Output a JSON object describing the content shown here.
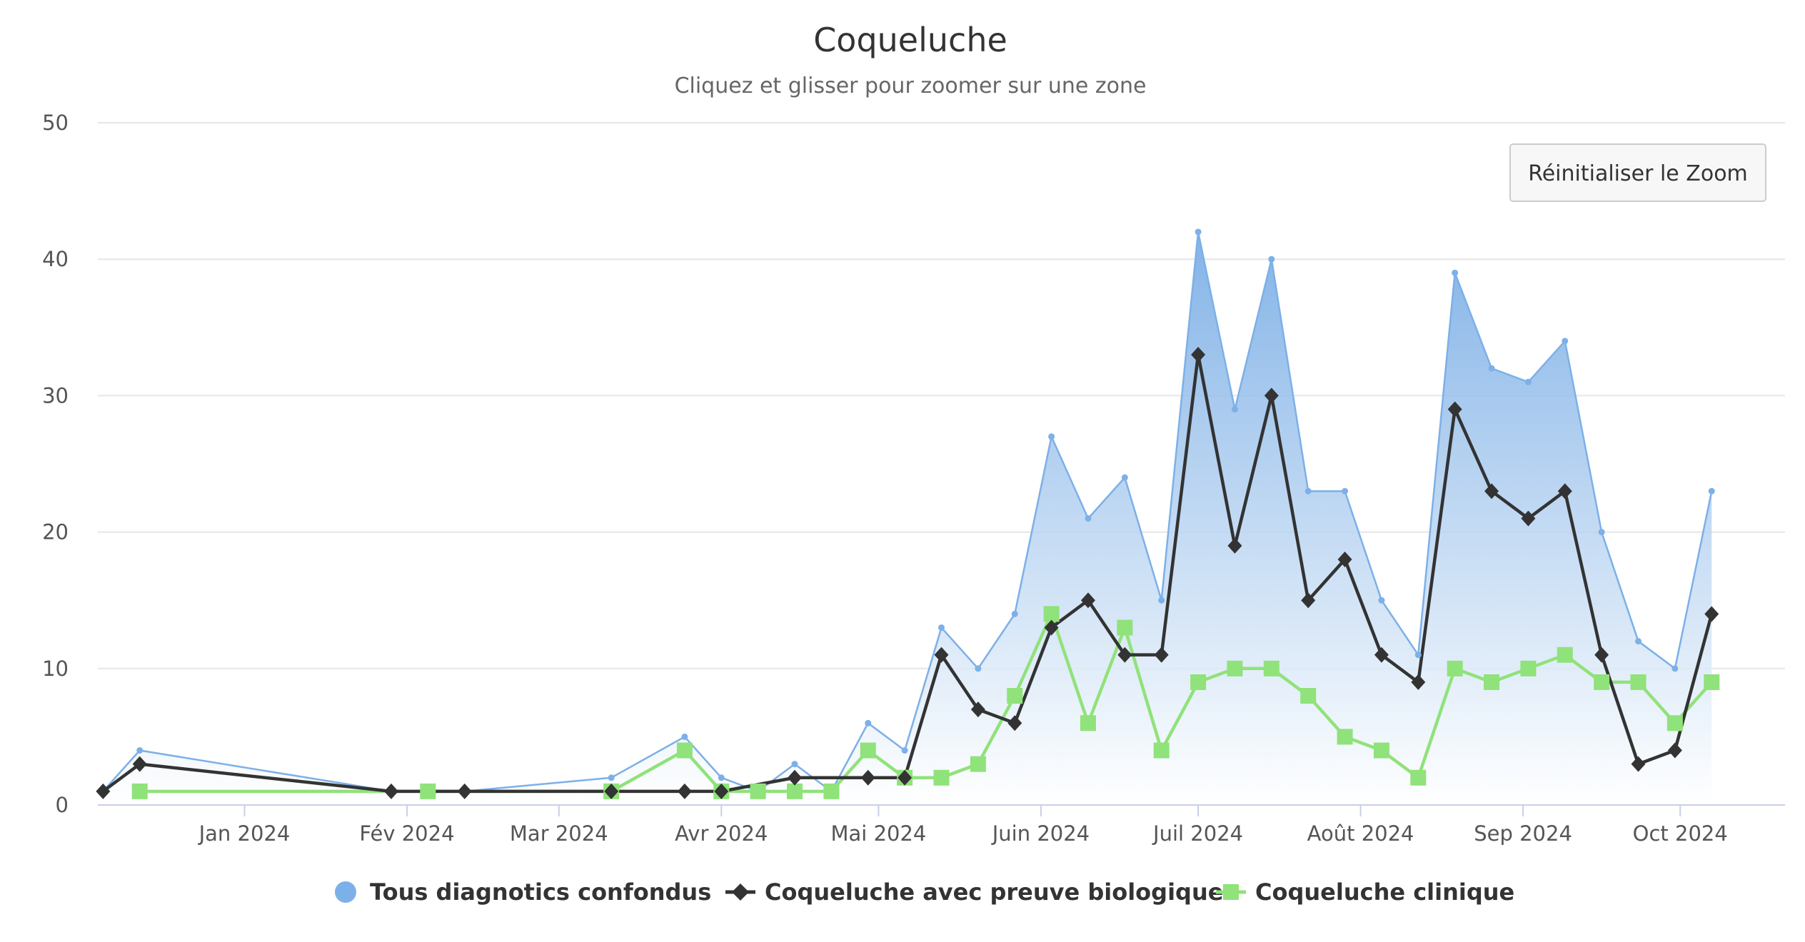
{
  "title": "Coqueluche",
  "subtitle": "Cliquez et glisser pour zoomer sur une zone",
  "reset_zoom_label": "Réinitialiser le Zoom",
  "colors": {
    "area_line": "#7cb0e8",
    "area_fill_top": "#6ea6e3",
    "black_series": "#333333",
    "green_series": "#90e27a",
    "grid": "#e6e6e6",
    "axis": "#c8cfe6"
  },
  "chart_data": {
    "type": "line",
    "xlabel": "",
    "ylabel": "",
    "ylim": [
      0,
      50
    ],
    "y_ticks": [
      0,
      10,
      20,
      30,
      40,
      50
    ],
    "x_range": [
      "2023-12-04",
      "2024-10-21"
    ],
    "x_tick_labels": [
      {
        "date": "2024-01-01",
        "label": "Jan 2024"
      },
      {
        "date": "2024-02-01",
        "label": "Fév 2024"
      },
      {
        "date": "2024-03-01",
        "label": "Mar 2024"
      },
      {
        "date": "2024-04-01",
        "label": "Avr 2024"
      },
      {
        "date": "2024-05-01",
        "label": "Mai 2024"
      },
      {
        "date": "2024-06-01",
        "label": "Juin 2024"
      },
      {
        "date": "2024-07-01",
        "label": "Juil 2024"
      },
      {
        "date": "2024-08-01",
        "label": "Août 2024"
      },
      {
        "date": "2024-09-01",
        "label": "Sep 2024"
      },
      {
        "date": "2024-10-01",
        "label": "Oct 2024"
      }
    ],
    "legend_position": "bottom",
    "series": [
      {
        "name": "Tous diagnotics confondus",
        "kind": "area",
        "points": [
          [
            "2023-12-05",
            1
          ],
          [
            "2023-12-12",
            4
          ],
          [
            "2024-01-29",
            1
          ],
          [
            "2024-02-05",
            1
          ],
          [
            "2024-02-12",
            1
          ],
          [
            "2024-03-11",
            2
          ],
          [
            "2024-03-25",
            5
          ],
          [
            "2024-04-01",
            2
          ],
          [
            "2024-04-08",
            1
          ],
          [
            "2024-04-15",
            3
          ],
          [
            "2024-04-22",
            1
          ],
          [
            "2024-04-29",
            6
          ],
          [
            "2024-05-06",
            4
          ],
          [
            "2024-05-13",
            13
          ],
          [
            "2024-05-20",
            10
          ],
          [
            "2024-05-27",
            14
          ],
          [
            "2024-06-03",
            27
          ],
          [
            "2024-06-10",
            21
          ],
          [
            "2024-06-17",
            24
          ],
          [
            "2024-06-24",
            15
          ],
          [
            "2024-07-01",
            42
          ],
          [
            "2024-07-08",
            29
          ],
          [
            "2024-07-15",
            40
          ],
          [
            "2024-07-22",
            23
          ],
          [
            "2024-07-29",
            23
          ],
          [
            "2024-08-05",
            15
          ],
          [
            "2024-08-12",
            11
          ],
          [
            "2024-08-19",
            39
          ],
          [
            "2024-08-26",
            32
          ],
          [
            "2024-09-02",
            31
          ],
          [
            "2024-09-09",
            34
          ],
          [
            "2024-09-16",
            20
          ],
          [
            "2024-09-23",
            12
          ],
          [
            "2024-09-30",
            10
          ],
          [
            "2024-10-07",
            23
          ]
        ]
      },
      {
        "name": "Coqueluche avec preuve biologique",
        "kind": "line",
        "marker": "diamond",
        "points": [
          [
            "2023-12-05",
            1
          ],
          [
            "2023-12-12",
            3
          ],
          [
            "2024-01-29",
            1
          ],
          [
            "2024-02-12",
            1
          ],
          [
            "2024-03-11",
            1
          ],
          [
            "2024-03-25",
            1
          ],
          [
            "2024-04-01",
            1
          ],
          [
            "2024-04-15",
            2
          ],
          [
            "2024-04-29",
            2
          ],
          [
            "2024-05-06",
            2
          ],
          [
            "2024-05-13",
            11
          ],
          [
            "2024-05-20",
            7
          ],
          [
            "2024-05-27",
            6
          ],
          [
            "2024-06-03",
            13
          ],
          [
            "2024-06-10",
            15
          ],
          [
            "2024-06-17",
            11
          ],
          [
            "2024-06-24",
            11
          ],
          [
            "2024-07-01",
            33
          ],
          [
            "2024-07-08",
            19
          ],
          [
            "2024-07-15",
            30
          ],
          [
            "2024-07-22",
            15
          ],
          [
            "2024-07-29",
            18
          ],
          [
            "2024-08-05",
            11
          ],
          [
            "2024-08-12",
            9
          ],
          [
            "2024-08-19",
            29
          ],
          [
            "2024-08-26",
            23
          ],
          [
            "2024-09-02",
            21
          ],
          [
            "2024-09-09",
            23
          ],
          [
            "2024-09-16",
            11
          ],
          [
            "2024-09-23",
            3
          ],
          [
            "2024-09-30",
            4
          ],
          [
            "2024-10-07",
            14
          ]
        ]
      },
      {
        "name": "Coqueluche clinique",
        "kind": "line",
        "marker": "square",
        "points": [
          [
            "2023-12-12",
            1
          ],
          [
            "2024-02-05",
            1
          ],
          [
            "2024-03-11",
            1
          ],
          [
            "2024-03-25",
            4
          ],
          [
            "2024-04-01",
            1
          ],
          [
            "2024-04-08",
            1
          ],
          [
            "2024-04-15",
            1
          ],
          [
            "2024-04-22",
            1
          ],
          [
            "2024-04-29",
            4
          ],
          [
            "2024-05-06",
            2
          ],
          [
            "2024-05-13",
            2
          ],
          [
            "2024-05-20",
            3
          ],
          [
            "2024-05-27",
            8
          ],
          [
            "2024-06-03",
            14
          ],
          [
            "2024-06-10",
            6
          ],
          [
            "2024-06-17",
            13
          ],
          [
            "2024-06-24",
            4
          ],
          [
            "2024-07-01",
            9
          ],
          [
            "2024-07-08",
            10
          ],
          [
            "2024-07-15",
            10
          ],
          [
            "2024-07-22",
            8
          ],
          [
            "2024-07-29",
            5
          ],
          [
            "2024-08-05",
            4
          ],
          [
            "2024-08-12",
            2
          ],
          [
            "2024-08-19",
            10
          ],
          [
            "2024-08-26",
            9
          ],
          [
            "2024-09-02",
            10
          ],
          [
            "2024-09-09",
            11
          ],
          [
            "2024-09-16",
            9
          ],
          [
            "2024-09-23",
            9
          ],
          [
            "2024-09-30",
            6
          ],
          [
            "2024-10-07",
            9
          ]
        ]
      }
    ]
  }
}
